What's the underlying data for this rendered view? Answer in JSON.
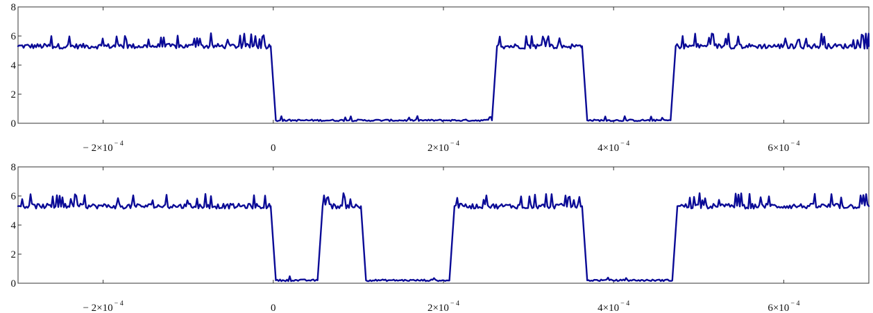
{
  "chart_data": [
    {
      "type": "line",
      "title": "",
      "xlabel": "",
      "ylabel": "",
      "xlim": [
        -0.0003,
        0.0007
      ],
      "ylim": [
        0,
        8
      ],
      "grid": false,
      "legend": "none",
      "line_color": "#0a0a96",
      "x_ticks": [
        {
          "value": -0.0002,
          "mantissa": "− 2×10",
          "exponent": "− 4"
        },
        {
          "value": 0,
          "mantissa": "0",
          "exponent": ""
        },
        {
          "value": 0.0002,
          "mantissa": "2×10",
          "exponent": "− 4"
        },
        {
          "value": 0.0004,
          "mantissa": "4×10",
          "exponent": "− 4"
        },
        {
          "value": 0.0006,
          "mantissa": "6×10",
          "exponent": "− 4"
        }
      ],
      "y_ticks": [
        {
          "value": 0,
          "label": "0"
        },
        {
          "value": 2,
          "label": "2"
        },
        {
          "value": 4,
          "label": "4"
        },
        {
          "value": 6,
          "label": "6"
        },
        {
          "value": 8,
          "label": "8"
        }
      ],
      "high_level": 5.3,
      "low_level": 0.2,
      "series": [
        {
          "x": [
            -0.0003,
            -3e-06,
            3e-06,
            0.000257,
            0.000263,
            0.000363,
            0.000369,
            0.000467,
            0.000473,
            0.0007
          ],
          "y": [
            5.3,
            5.3,
            0.2,
            0.2,
            5.3,
            5.3,
            0.2,
            0.2,
            5.3,
            5.3
          ]
        }
      ]
    },
    {
      "type": "line",
      "title": "",
      "xlabel": "",
      "ylabel": "",
      "xlim": [
        -0.0003,
        0.0007
      ],
      "ylim": [
        0,
        8
      ],
      "grid": false,
      "legend": "none",
      "line_color": "#0a0a96",
      "x_ticks": [
        {
          "value": -0.0002,
          "mantissa": "− 2×10",
          "exponent": "− 4"
        },
        {
          "value": 0,
          "mantissa": "0",
          "exponent": ""
        },
        {
          "value": 0.0002,
          "mantissa": "2×10",
          "exponent": "− 4"
        },
        {
          "value": 0.0004,
          "mantissa": "4×10",
          "exponent": "− 4"
        },
        {
          "value": 0.0006,
          "mantissa": "6×10",
          "exponent": "− 4"
        }
      ],
      "y_ticks": [
        {
          "value": 0,
          "label": "0"
        },
        {
          "value": 2,
          "label": "2"
        },
        {
          "value": 4,
          "label": "4"
        },
        {
          "value": 6,
          "label": "6"
        },
        {
          "value": 8,
          "label": "8"
        }
      ],
      "high_level": 5.3,
      "low_level": 0.2,
      "series": [
        {
          "x": [
            -0.0003,
            -3e-06,
            3e-06,
            5.2e-05,
            5.8e-05,
            0.000103,
            0.000109,
            0.000207,
            0.000213,
            0.000363,
            0.000369,
            0.000469,
            0.000475,
            0.0007
          ],
          "y": [
            5.3,
            5.3,
            0.2,
            0.2,
            5.3,
            5.3,
            0.2,
            0.2,
            5.3,
            5.3,
            0.2,
            0.2,
            5.3,
            5.3
          ]
        }
      ]
    }
  ]
}
